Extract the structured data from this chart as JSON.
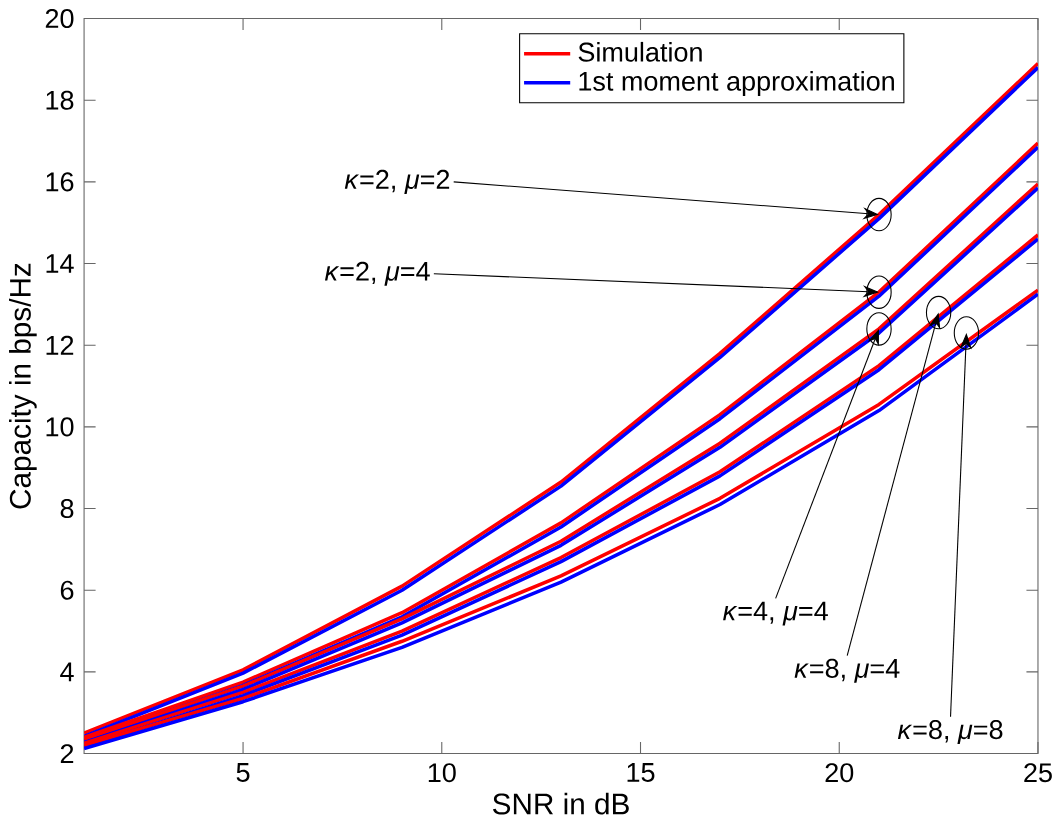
{
  "chart_data": {
    "type": "line",
    "xlabel": "SNR in dB",
    "ylabel": "Capacity in bps/Hz",
    "x": [
      1,
      5,
      9,
      13,
      17,
      21,
      25
    ],
    "series": [
      {
        "name": "Simulation",
        "color": "#ff0000",
        "values": [
          2.5,
          4.05,
          6.1,
          8.65,
          11.8,
          15.2,
          18.9
        ]
      },
      {
        "name": "1st moment approximation",
        "color": "#0000ff",
        "values": [
          2.42,
          3.97,
          6.0,
          8.55,
          11.7,
          15.1,
          18.8
        ]
      },
      {
        "color": "#ff0000",
        "values": [
          2.4,
          3.75,
          5.45,
          7.65,
          10.3,
          13.3,
          16.95
        ]
      },
      {
        "color": "#0000ff",
        "values": [
          2.32,
          3.67,
          5.35,
          7.55,
          10.2,
          13.2,
          16.85
        ]
      },
      {
        "color": "#ff0000",
        "values": [
          2.35,
          3.65,
          5.3,
          7.2,
          9.6,
          12.4,
          15.95
        ]
      },
      {
        "color": "#0000ff",
        "values": [
          2.27,
          3.57,
          5.2,
          7.1,
          9.5,
          12.3,
          15.85
        ]
      },
      {
        "color": "#ff0000",
        "values": [
          2.25,
          3.5,
          5.0,
          6.8,
          8.9,
          11.5,
          14.7
        ]
      },
      {
        "color": "#0000ff",
        "values": [
          2.17,
          3.42,
          4.9,
          6.7,
          8.8,
          11.4,
          14.6
        ]
      },
      {
        "color": "#ff0000",
        "values": [
          2.2,
          3.35,
          4.75,
          6.35,
          8.25,
          10.55,
          13.35
        ]
      },
      {
        "color": "#0000ff",
        "values": [
          2.12,
          3.27,
          4.6,
          6.2,
          8.1,
          10.4,
          13.25
        ]
      }
    ],
    "xlim": [
      1,
      25
    ],
    "ylim": [
      2,
      20
    ],
    "xticks": [
      5,
      10,
      15,
      20,
      25
    ],
    "yticks": [
      2,
      4,
      6,
      8,
      10,
      12,
      14,
      16,
      18,
      20
    ],
    "legend": "top right",
    "grid": false,
    "annotations": [
      {
        "text": "*κ*=2, *μ*=2",
        "x": 21,
        "y": 15.2
      },
      {
        "text": "*κ*=2, *μ*=4",
        "x": 21,
        "y": 13.3
      },
      {
        "text": "*κ*=4, *μ*=4",
        "x": 21,
        "y": 12.4
      },
      {
        "text": "*κ*=8, *μ*=4",
        "x": 22.5,
        "y": 12.8
      },
      {
        "text": "*κ*=8, *μ*=8",
        "x": 23.2,
        "y": 12.3
      }
    ]
  }
}
